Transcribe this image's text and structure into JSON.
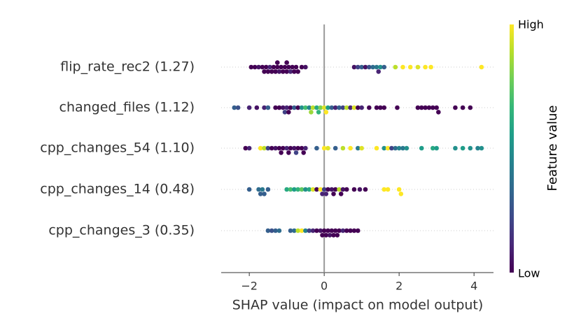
{
  "chart_data": {
    "type": "beeswarm",
    "xlabel": "SHAP value (impact on model output)",
    "xlim": [
      -2.75,
      4.52
    ],
    "xticks": [
      {
        "value": -2,
        "label": "−2"
      },
      0,
      2,
      4
    ],
    "grid": true,
    "colormap": "viridis",
    "colorbar": {
      "label": "Feature value",
      "high": "High",
      "low": "Low"
    },
    "series": [
      {
        "name": "flip_rate_rec2 (1.27)",
        "values": [
          -1.95,
          -1.85,
          -1.75,
          -1.65,
          -1.6,
          -1.5,
          -1.45,
          -1.4,
          -1.35,
          -1.3,
          -1.25,
          -1.2,
          -1.15,
          -1.1,
          -1.05,
          -1.0,
          -0.95,
          -0.9,
          -0.85,
          -0.8,
          -0.75,
          -0.7,
          -0.6,
          -0.5,
          -1.55,
          -1.25,
          -1.0,
          0.8,
          0.9,
          1.0,
          1.1,
          1.2,
          1.3,
          1.4,
          1.45,
          1.5,
          1.6,
          1.9,
          2.1,
          2.3,
          2.5,
          2.7,
          2.85,
          4.2
        ],
        "feature_values": [
          0,
          0,
          0.05,
          0,
          0,
          0,
          0.1,
          0,
          0,
          0,
          0,
          0.05,
          0,
          0,
          0,
          0,
          0,
          0.1,
          0,
          0,
          0,
          0,
          0,
          0.05,
          0,
          0,
          0,
          0.05,
          0.2,
          0.3,
          0.05,
          0.25,
          0.35,
          0.4,
          0.1,
          0.5,
          0.3,
          0.9,
          1,
          1,
          0.95,
          1,
          1,
          1
        ]
      },
      {
        "name": "changed_files (1.12)",
        "values": [
          -2.4,
          -2.3,
          -2.0,
          -1.8,
          -1.6,
          -1.5,
          -1.3,
          -1.2,
          -1.1,
          -1.0,
          -0.9,
          -0.8,
          -0.7,
          -1.05,
          -0.95,
          -0.6,
          -0.5,
          -0.4,
          -0.3,
          -0.2,
          -0.1,
          0.0,
          0.1,
          0.2,
          0.3,
          -0.35,
          -0.15,
          0.05,
          0.4,
          0.5,
          0.6,
          0.7,
          0.8,
          0.9,
          1.0,
          1.2,
          1.4,
          1.5,
          1.6,
          1.95,
          2.5,
          2.6,
          2.7,
          2.8,
          2.9,
          3.0,
          3.05,
          3.5,
          3.7,
          3.9
        ],
        "feature_values": [
          0.3,
          0.25,
          0.1,
          0.05,
          0.1,
          0.3,
          0,
          0,
          0.05,
          0.1,
          0,
          0.3,
          0,
          0.2,
          0,
          0.5,
          0.7,
          0.45,
          0.9,
          0.6,
          0.8,
          0.95,
          0.55,
          0.3,
          0.1,
          0.85,
          0.65,
          1,
          0.3,
          0.2,
          0.9,
          0.1,
          0.95,
          0,
          0.1,
          0,
          0,
          0,
          0,
          0,
          0,
          0,
          0,
          0,
          0,
          0,
          0,
          0,
          0,
          0
        ]
      },
      {
        "name": "cpp_changes_54 (1.10)",
        "values": [
          -2.1,
          -2.0,
          -1.7,
          -1.6,
          -1.5,
          -1.4,
          -1.3,
          -1.2,
          -1.1,
          -1.0,
          -0.9,
          -0.8,
          -0.7,
          -0.6,
          -0.5,
          -1.15,
          -0.95,
          -0.75,
          -0.55,
          -0.2,
          0.0,
          0.1,
          0.3,
          0.5,
          0.7,
          0.9,
          1.0,
          1.4,
          1.6,
          1.7,
          1.8,
          1.9,
          2.0,
          2.1,
          2.2,
          2.6,
          2.9,
          3.0,
          3.5,
          3.7,
          3.9,
          4.1,
          4.2
        ],
        "feature_values": [
          0,
          0.1,
          1,
          0.9,
          0.2,
          0,
          0.05,
          0,
          0,
          0.1,
          0,
          0.05,
          0,
          0,
          0.1,
          0,
          0,
          0.2,
          0,
          0.3,
          1,
          0.95,
          0.3,
          0.9,
          1,
          0.4,
          0.95,
          1,
          0.5,
          1,
          0.2,
          0.35,
          0.45,
          0.4,
          0.5,
          0.55,
          0.6,
          0.55,
          0.5,
          0.55,
          0.5,
          0.45,
          0.5
        ]
      },
      {
        "name": "cpp_changes_14 (0.48)",
        "values": [
          -2.0,
          -1.75,
          -1.7,
          -1.65,
          -1.6,
          -1.5,
          -1.0,
          -0.9,
          -0.8,
          -0.7,
          -0.6,
          -0.5,
          -0.4,
          -0.3,
          -0.2,
          -0.1,
          -0.05,
          0.0,
          0.1,
          0.2,
          0.3,
          0.4,
          0.5,
          0.6,
          0.05,
          0.25,
          0.45,
          0.8,
          0.95,
          1.1,
          1.6,
          1.7,
          2.0,
          2.05
        ],
        "feature_values": [
          0.3,
          0.35,
          0.3,
          0.4,
          0.3,
          0.3,
          0.6,
          0.7,
          0.55,
          0.65,
          0.75,
          0.5,
          0.6,
          0.95,
          0,
          1,
          0.1,
          0.2,
          0,
          0.05,
          0,
          0.9,
          0.05,
          0,
          0.1,
          0,
          0,
          0,
          0.05,
          0,
          1,
          1,
          1,
          1
        ]
      },
      {
        "name": "cpp_changes_3 (0.35)",
        "values": [
          -1.5,
          -1.4,
          -1.3,
          -1.2,
          -0.9,
          -0.8,
          -0.7,
          -0.6,
          -0.5,
          -0.4,
          -0.3,
          -0.2,
          -0.1,
          0.0,
          0.1,
          0.2,
          0.3,
          0.4,
          0.5,
          0.6,
          0.7,
          0.8,
          0.9,
          -0.05,
          0.15,
          0.35,
          0.05,
          0.25
        ],
        "feature_values": [
          0.3,
          0.25,
          0.3,
          0.35,
          0.3,
          0.35,
          0.9,
          1,
          0.45,
          0.2,
          0.1,
          0,
          0.05,
          0,
          0,
          0,
          0,
          0,
          0.1,
          0,
          0,
          0,
          0,
          0,
          0.05,
          0,
          0,
          0
        ]
      }
    ]
  }
}
